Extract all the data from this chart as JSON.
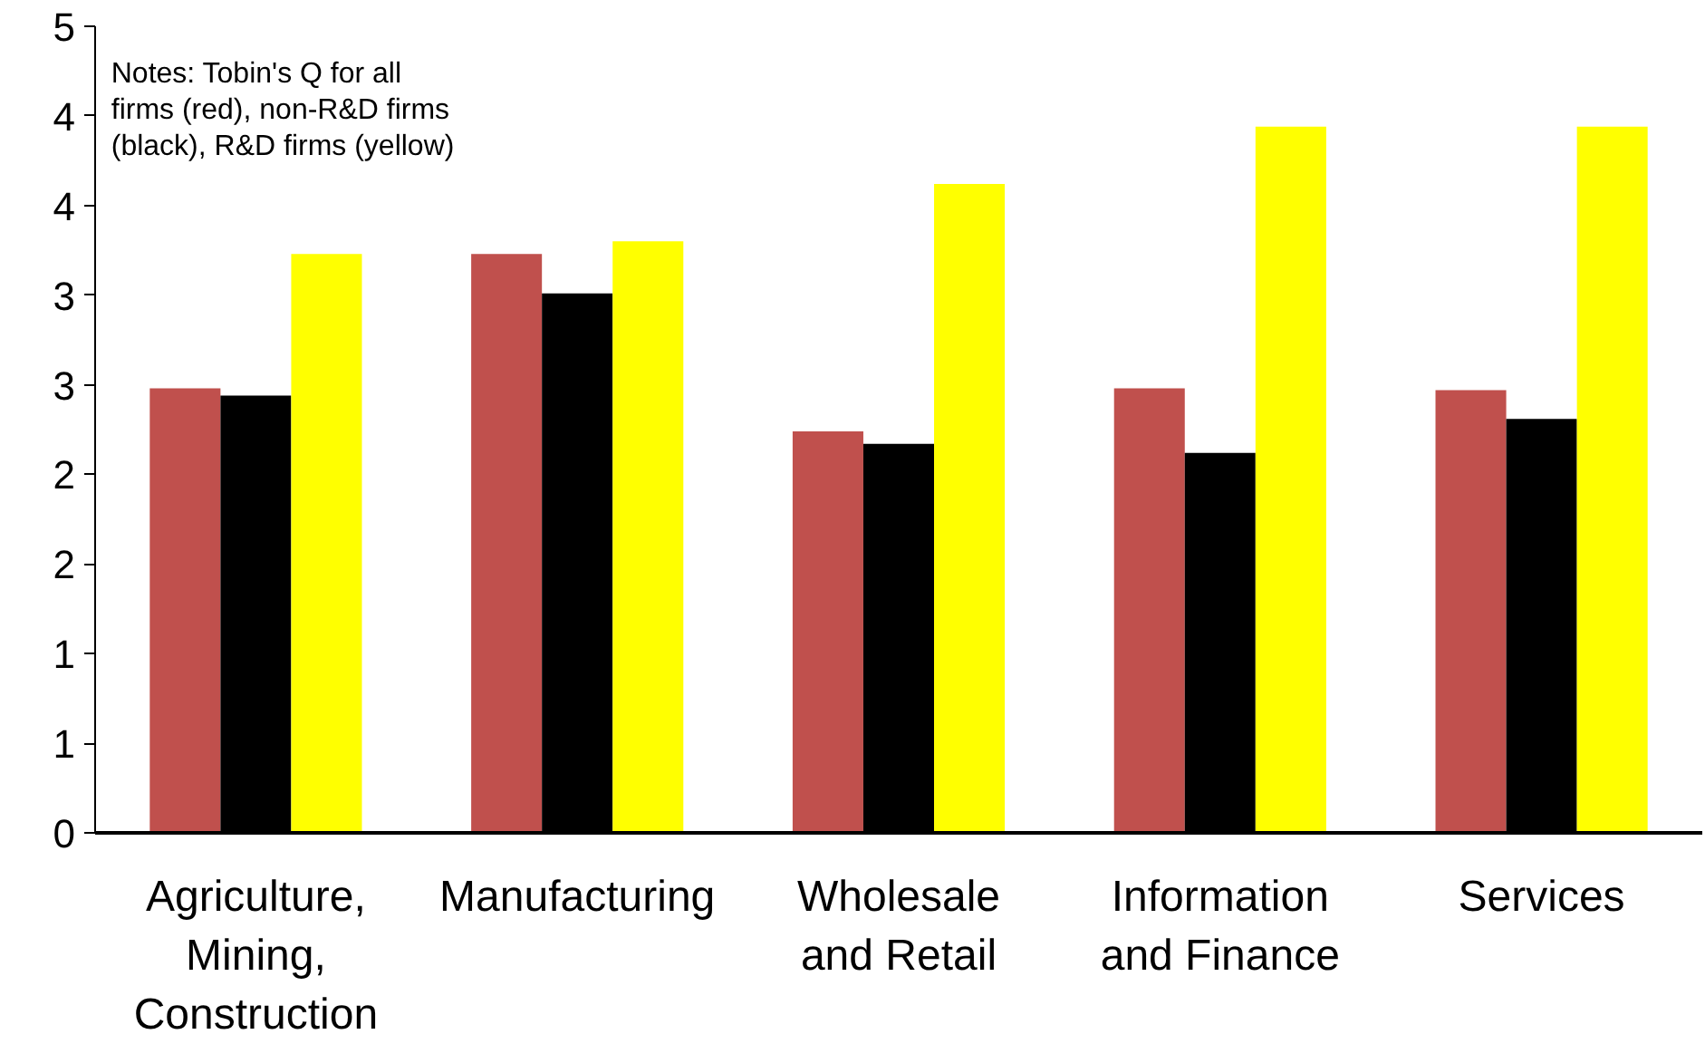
{
  "chart_data": {
    "type": "bar",
    "categories": [
      "Agriculture, Mining, Construction",
      "Manufacturing",
      "Wholesale and Retail",
      "Information and Finance",
      "Services"
    ],
    "series": [
      {
        "color": "#c0504d",
        "values": [
          2.48,
          3.23,
          2.24,
          2.48,
          2.47
        ]
      },
      {
        "color": "#000000",
        "values": [
          2.44,
          3.01,
          2.17,
          2.12,
          2.31
        ]
      },
      {
        "color": "#ffff00",
        "values": [
          3.23,
          3.3,
          3.62,
          3.94,
          3.94
        ]
      }
    ],
    "ylim": [
      0,
      4.5
    ],
    "yticks": [
      0,
      {
        "value": 0.5,
        "label": "1"
      },
      1,
      {
        "value": 1.5,
        "label": "2"
      },
      2,
      {
        "value": 2.5,
        "label": "3"
      },
      3,
      {
        "value": 3.5,
        "label": "4"
      },
      4,
      {
        "value": 4.5,
        "label": "5"
      }
    ],
    "annotations": [
      "Notes: Tobin's Q for all firms (red), non-R&D firms (black), R&D firms (yellow)"
    ],
    "grid": false
  }
}
